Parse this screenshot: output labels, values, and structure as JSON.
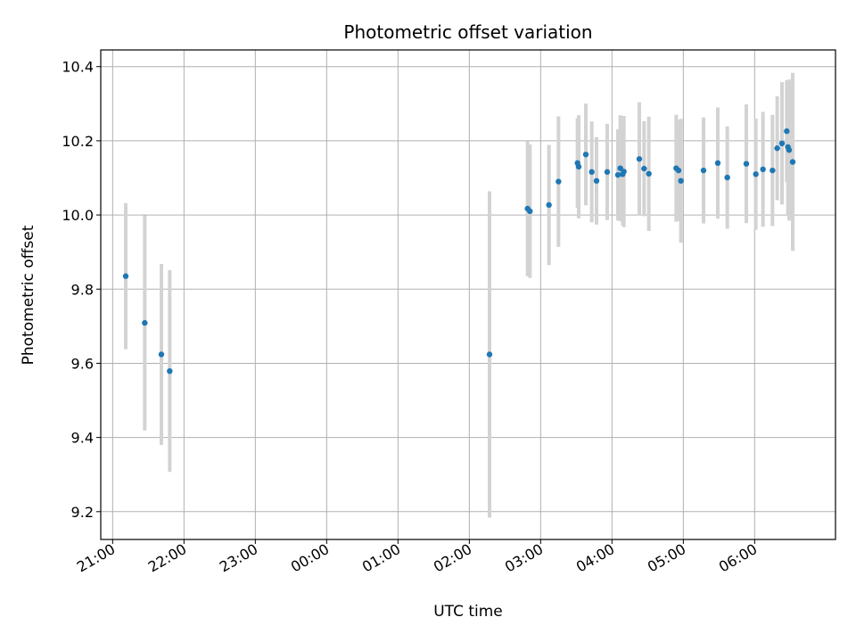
{
  "chart_data": {
    "type": "scatter",
    "title": "Photometric offset variation",
    "xlabel": "UTC time",
    "ylabel": "Photometric offset",
    "x_unit": "UTC time (HH:MM)",
    "x_ticks": [
      "21:00",
      "22:00",
      "23:00",
      "00:00",
      "01:00",
      "02:00",
      "03:00",
      "04:00",
      "05:00",
      "06:00"
    ],
    "y_ticks": [
      "9.2",
      "9.4",
      "9.6",
      "9.8",
      "10.0",
      "10.2",
      "10.4"
    ],
    "xlim": [
      "20:50",
      "31:08"
    ],
    "ylim": [
      9.125,
      10.445
    ],
    "grid": true,
    "colors": {
      "marker": "#1f77b4",
      "errorbar": "#d3d3d3",
      "grid": "#b0b0b0"
    },
    "points": [
      {
        "t": "21:11",
        "y": 9.835,
        "err": 0.197
      },
      {
        "t": "21:27",
        "y": 9.709,
        "err": 0.29
      },
      {
        "t": "21:41",
        "y": 9.624,
        "err": 0.244
      },
      {
        "t": "21:48",
        "y": 9.579,
        "err": 0.272
      },
      {
        "t": "02:17",
        "y": 9.624,
        "err": 0.44
      },
      {
        "t": "02:49",
        "y": 10.017,
        "err": 0.182
      },
      {
        "t": "02:51",
        "y": 10.01,
        "err": 0.18
      },
      {
        "t": "03:07",
        "y": 10.027,
        "err": 0.162
      },
      {
        "t": "03:15",
        "y": 10.09,
        "err": 0.176
      },
      {
        "t": "03:31",
        "y": 10.14,
        "err": 0.121
      },
      {
        "t": "03:32",
        "y": 10.13,
        "err": 0.139
      },
      {
        "t": "03:38",
        "y": 10.163,
        "err": 0.137
      },
      {
        "t": "03:43",
        "y": 10.116,
        "err": 0.136
      },
      {
        "t": "03:47",
        "y": 10.092,
        "err": 0.118
      },
      {
        "t": "03:56",
        "y": 10.116,
        "err": 0.13
      },
      {
        "t": "04:05",
        "y": 10.108,
        "err": 0.123
      },
      {
        "t": "04:07",
        "y": 10.126,
        "err": 0.143
      },
      {
        "t": "04:09",
        "y": 10.11,
        "err": 0.138
      },
      {
        "t": "04:10",
        "y": 10.117,
        "err": 0.15
      },
      {
        "t": "04:23",
        "y": 10.151,
        "err": 0.153
      },
      {
        "t": "04:27",
        "y": 10.125,
        "err": 0.128
      },
      {
        "t": "04:31",
        "y": 10.111,
        "err": 0.154
      },
      {
        "t": "04:54",
        "y": 10.126,
        "err": 0.144
      },
      {
        "t": "04:56",
        "y": 10.12,
        "err": 0.137
      },
      {
        "t": "04:58",
        "y": 10.092,
        "err": 0.167
      },
      {
        "t": "05:17",
        "y": 10.12,
        "err": 0.143
      },
      {
        "t": "05:29",
        "y": 10.14,
        "err": 0.15
      },
      {
        "t": "05:37",
        "y": 10.101,
        "err": 0.138
      },
      {
        "t": "05:53",
        "y": 10.138,
        "err": 0.16
      },
      {
        "t": "06:01",
        "y": 10.11,
        "err": 0.15
      },
      {
        "t": "06:07",
        "y": 10.123,
        "err": 0.155
      },
      {
        "t": "06:15",
        "y": 10.12,
        "err": 0.15
      },
      {
        "t": "06:19",
        "y": 10.18,
        "err": 0.14
      },
      {
        "t": "06:23",
        "y": 10.193,
        "err": 0.165
      },
      {
        "t": "06:27",
        "y": 10.226,
        "err": 0.137
      },
      {
        "t": "06:28",
        "y": 10.183,
        "err": 0.181
      },
      {
        "t": "06:29",
        "y": 10.175,
        "err": 0.19
      },
      {
        "t": "06:32",
        "y": 10.143,
        "err": 0.24
      }
    ]
  }
}
